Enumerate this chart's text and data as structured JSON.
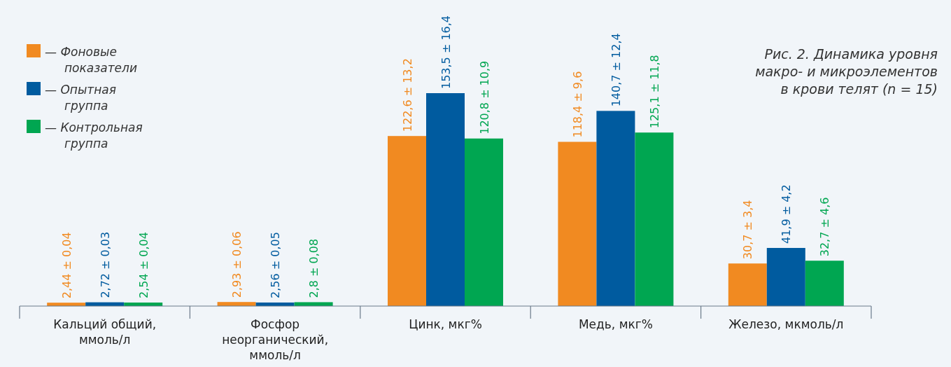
{
  "chart_data": {
    "type": "bar",
    "title": "Рис. 2. Динамика уровня\nмакро- и микроэлементов\nв крови телят (n = 15)",
    "categories": [
      "Кальций общий,\nммоль/л",
      "Фосфор\nнеорганический,\nммоль/л",
      "Цинк, мкг%",
      "Медь, мкг%",
      "Железо, мкмоль/л"
    ],
    "series": [
      {
        "name": "— Фоновые показатели",
        "color": "#f18a21",
        "values": [
          2.44,
          2.93,
          122.6,
          118.4,
          30.7
        ],
        "value_labels": [
          "2,44 ± 0,04",
          "2,93 ± 0,06",
          "122,6 ± 13,2",
          "118,4 ± 9,6",
          "30,7 ± 3,4"
        ]
      },
      {
        "name": "— Опытная группа",
        "color": "#005b9f",
        "values": [
          2.72,
          2.56,
          153.5,
          140.7,
          41.9
        ],
        "value_labels": [
          "2,72 ± 0,03",
          "2,56 ± 0,05",
          "153,5 ± 16,4",
          "140,7 ± 12,4",
          "41,9 ± 4,2"
        ]
      },
      {
        "name": "— Контрольная группа",
        "color": "#00a651",
        "values": [
          2.54,
          2.8,
          120.8,
          125.1,
          32.7
        ],
        "value_labels": [
          "2,54 ± 0,04",
          "2,8 ± 0,08",
          "120,8 ± 10,9",
          "125,1 ± 11,8",
          "32,7 ± 4,6"
        ]
      }
    ],
    "legend": "top left"
  }
}
